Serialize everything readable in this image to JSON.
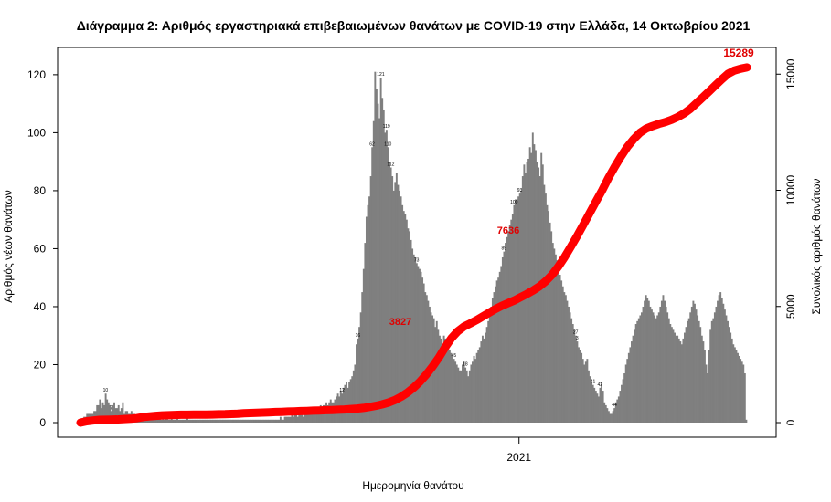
{
  "chart_data": {
    "type": "bar",
    "title": "Διάγραμμα 2: Αριθμός εργαστηριακά επιβεβαιωμένων θανάτων με COVID-19 στην Ελλάδα, 14 Οκτωβρίου 2021",
    "xlabel": "Ημερομηνία θανάτου",
    "ylabel": "Αριθμός νέων θανάτων",
    "ylabel_right": "Συνολικός αριθμός θανάτων",
    "x_tick_labels": [
      "2021"
    ],
    "x_ticks_day_index": [
      306
    ],
    "ylim": [
      0,
      125
    ],
    "yticks": [
      0,
      20,
      40,
      60,
      80,
      100,
      120
    ],
    "ylim_right": [
      0,
      15600
    ],
    "yticks_right": [
      0,
      5000,
      10000,
      15000
    ],
    "start_note": "x values are consecutive daily counts in date order, from March 2020 through 13 October 2021",
    "series": [
      {
        "values": [
          1,
          1,
          2,
          2,
          3,
          3,
          3,
          3,
          3,
          4,
          4,
          6,
          6,
          8,
          5,
          7,
          6,
          10,
          8,
          7,
          6,
          4,
          6,
          7,
          5,
          5,
          6,
          4,
          5,
          7,
          3,
          4,
          4,
          3,
          3,
          4,
          3,
          3,
          2,
          2,
          3,
          2,
          2,
          3,
          3,
          2,
          2,
          2,
          1,
          2,
          2,
          1,
          1,
          1,
          2,
          2,
          1,
          2,
          1,
          2,
          2,
          1,
          1,
          2,
          1,
          1,
          1,
          2,
          1,
          1,
          1,
          1,
          1,
          1,
          2,
          1,
          1,
          1,
          1,
          1,
          1,
          1,
          1,
          1,
          1,
          1,
          1,
          1,
          1,
          1,
          1,
          1,
          1,
          1,
          1,
          1,
          1,
          1,
          1,
          1,
          1,
          1,
          1,
          1,
          1,
          1,
          1,
          1,
          1,
          1,
          1,
          1,
          1,
          1,
          1,
          1,
          1,
          1,
          1,
          1,
          1,
          1,
          1,
          1,
          1,
          1,
          1,
          1,
          1,
          1,
          1,
          1,
          1,
          1,
          1,
          1,
          1,
          1,
          1,
          2,
          1,
          1,
          2,
          2,
          2,
          2,
          2,
          3,
          2,
          3,
          3,
          2,
          3,
          3,
          3,
          2,
          3,
          3,
          3,
          4,
          3,
          4,
          4,
          5,
          4,
          5,
          5,
          6,
          5,
          6,
          6,
          7,
          6,
          7,
          8,
          7,
          7,
          8,
          9,
          10,
          9,
          11,
          10,
          12,
          13,
          14,
          12,
          14,
          15,
          16,
          18,
          20,
          27,
          29,
          33,
          38,
          45,
          53,
          62,
          71,
          75,
          78,
          85,
          95,
          104,
          121,
          115,
          110,
          105,
          119,
          112,
          108,
          100,
          101,
          95,
          90,
          88,
          85,
          80,
          83,
          86,
          82,
          80,
          78,
          75,
          73,
          72,
          70,
          67,
          66,
          63,
          60,
          58,
          57,
          55,
          54,
          53,
          52,
          50,
          48,
          45,
          44,
          42,
          40,
          38,
          37,
          36,
          33,
          35,
          32,
          30,
          29,
          27,
          30,
          29,
          27,
          26,
          25,
          24,
          23,
          22,
          21,
          20,
          19,
          18,
          18,
          20,
          21,
          19,
          18,
          16,
          18,
          20,
          21,
          23,
          22,
          24,
          25,
          26,
          28,
          30,
          29,
          31,
          33,
          35,
          38,
          40,
          43,
          45,
          47,
          49,
          50,
          52,
          54,
          57,
          59,
          62,
          64,
          66,
          68,
          70,
          72,
          75,
          77,
          77,
          78,
          79,
          80,
          85,
          89,
          86,
          90,
          91,
          95,
          93,
          100,
          96,
          94,
          90,
          88,
          85,
          93,
          89,
          82,
          79,
          75,
          73,
          69,
          66,
          62,
          60,
          58,
          56,
          53,
          51,
          49,
          47,
          45,
          44,
          42,
          40,
          38,
          36,
          34,
          32,
          30,
          28,
          26,
          25,
          24,
          22,
          20,
          21,
          22,
          18,
          16,
          14,
          13,
          12,
          11,
          10,
          9,
          12,
          14,
          11,
          7,
          6,
          5,
          4,
          3,
          3,
          4,
          5,
          7,
          8,
          9,
          11,
          13,
          15,
          17,
          20,
          22,
          24,
          26,
          28,
          30,
          32,
          34,
          35,
          36,
          37,
          38,
          40,
          42,
          44,
          43,
          42,
          40,
          39,
          38,
          37,
          36,
          37,
          38,
          40,
          42,
          44,
          42,
          40,
          38,
          36,
          34,
          33,
          32,
          31,
          30,
          30,
          29,
          28,
          27,
          29,
          31,
          33,
          35,
          36,
          38,
          40,
          42,
          41,
          39,
          37,
          35,
          33,
          30,
          28,
          25,
          20,
          17,
          25,
          32,
          35,
          36,
          38,
          40,
          42,
          44,
          45,
          43,
          41,
          39,
          37,
          35,
          33,
          31,
          29,
          27,
          26,
          25,
          24,
          23,
          22,
          21,
          20,
          17,
          1
        ]
      },
      {
        "name": "cumulative",
        "axis": "right",
        "values": [
          0,
          57,
          90,
          116,
          123,
          130,
          139,
          152,
          167,
          191,
          238,
          266,
          290,
          310,
          320,
          329,
          336,
          339,
          342,
          345,
          345,
          350,
          356,
          363,
          372,
          386,
          405,
          414,
          424,
          434,
          444,
          454,
          464,
          474,
          484,
          494,
          504,
          514,
          524,
          534,
          544,
          554,
          564,
          584,
          604,
          634,
          674,
          724,
          784,
          866,
          969,
          1111,
          1290,
          1504,
          1764,
          2065,
          2413,
          2798,
          3241,
          3634,
          3924,
          4134,
          4269,
          4414,
          4573,
          4732,
          4890,
          5027,
          5144,
          5259,
          5401,
          5537,
          5690,
          5864,
          6085,
          6362,
          6714,
          7126,
          7574,
          8036,
          8526,
          9025,
          9521,
          10008,
          10544,
          11023,
          11472,
          11873,
          12204,
          12479,
          12661,
          12768,
          12862,
          12934,
          13033,
          13155,
          13310,
          13506,
          13757,
          14004,
          14258,
          14519,
          14773,
          15016,
          15156,
          15235,
          15289
        ]
      }
    ],
    "data_labels": [
      {
        "text": "121"
      },
      {
        "text": "119"
      },
      {
        "text": "112"
      },
      {
        "text": "110"
      },
      {
        "text": "100"
      },
      {
        "text": "93"
      },
      {
        "text": "89"
      },
      {
        "text": "73"
      },
      {
        "text": "62"
      },
      {
        "text": "45"
      },
      {
        "text": "41"
      },
      {
        "text": "44"
      },
      {
        "text": "42"
      },
      {
        "text": "27"
      },
      {
        "text": "16"
      },
      {
        "text": "12"
      },
      {
        "text": "10"
      },
      {
        "text": "7"
      },
      {
        "text": "18"
      },
      {
        "text": "3"
      }
    ],
    "annotations": [
      {
        "text": "3827"
      },
      {
        "text": "7636"
      },
      {
        "text": "15289"
      }
    ],
    "colors": {
      "bars": "#7f7f7f",
      "line": "#ff0000",
      "text": "#000000",
      "annotation": "#e00000"
    },
    "grid": false,
    "legend": "none"
  }
}
